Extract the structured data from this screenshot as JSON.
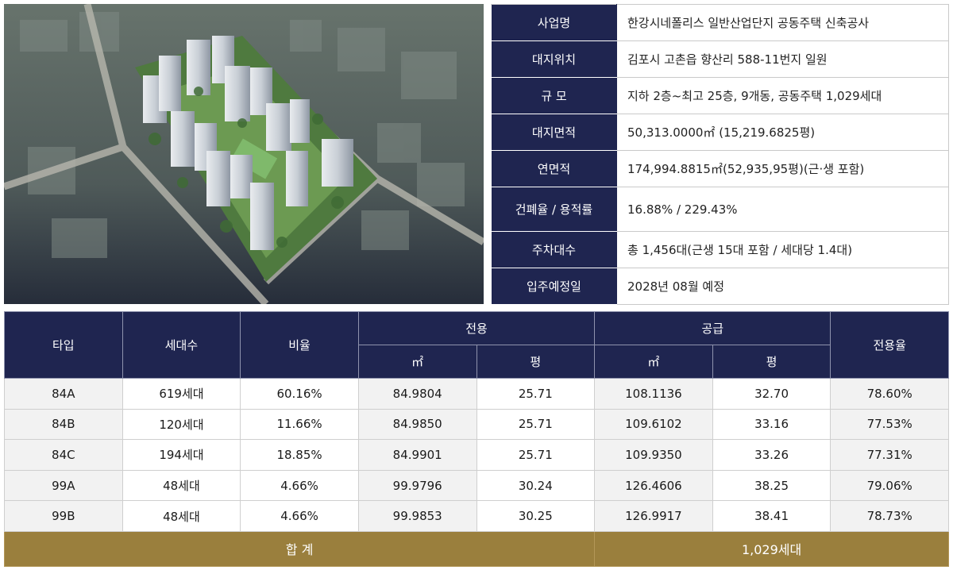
{
  "project_info": [
    {
      "label": "사업명",
      "value": "한강시네폴리스 일반산업단지 공동주택 신축공사"
    },
    {
      "label": "대지위치",
      "value": "김포시 고촌읍 향산리 588-11번지 일원"
    },
    {
      "label": "규 모",
      "value": "지하 2층~최고 25층, 9개동, 공동주택 1,029세대"
    },
    {
      "label": "대지면적",
      "value": "50,313.0000㎡ (15,219.6825평)"
    },
    {
      "label": "연면적",
      "value": "174,994.8815㎡(52,935,95평)(근·생 포함)"
    },
    {
      "label": "건폐율 / 용적률",
      "value": "16.88% / 229.43%"
    },
    {
      "label": "주차대수",
      "value": "총 1,456대(근생 15대 포함 / 세대당 1.4대)"
    },
    {
      "label": "입주예정일",
      "value": "2028년 08월 예정"
    }
  ],
  "unit_table": {
    "headers": {
      "type": "타입",
      "households": "세대수",
      "ratio": "비율",
      "exclusive": "전용",
      "supply": "공급",
      "exclusive_ratio": "전용율",
      "sqm": "㎡",
      "pyeong": "평"
    },
    "rows": [
      {
        "type": "84A",
        "households": "619세대",
        "ratio": "60.16%",
        "ex_sqm": "84.9804",
        "ex_py": "25.71",
        "sup_sqm": "108.1136",
        "sup_py": "32.70",
        "ex_rate": "78.60%"
      },
      {
        "type": "84B",
        "households": "120세대",
        "ratio": "11.66%",
        "ex_sqm": "84.9850",
        "ex_py": "25.71",
        "sup_sqm": "109.6102",
        "sup_py": "33.16",
        "ex_rate": "77.53%"
      },
      {
        "type": "84C",
        "households": "194세대",
        "ratio": "18.85%",
        "ex_sqm": "84.9901",
        "ex_py": "25.71",
        "sup_sqm": "109.9350",
        "sup_py": "33.26",
        "ex_rate": "77.31%"
      },
      {
        "type": "99A",
        "households": "48세대",
        "ratio": "4.66%",
        "ex_sqm": "99.9796",
        "ex_py": "30.24",
        "sup_sqm": "126.4606",
        "sup_py": "38.25",
        "ex_rate": "79.06%"
      },
      {
        "type": "99B",
        "households": "48세대",
        "ratio": "4.66%",
        "ex_sqm": "99.9853",
        "ex_py": "30.25",
        "sup_sqm": "126.9917",
        "sup_py": "38.41",
        "ex_rate": "78.73%"
      }
    ],
    "total": {
      "label": "합 계",
      "value": "1,029세대"
    }
  },
  "colors": {
    "navy": "#1f2550",
    "gold": "#9a7f3d",
    "shade": "#f2f2f2"
  }
}
